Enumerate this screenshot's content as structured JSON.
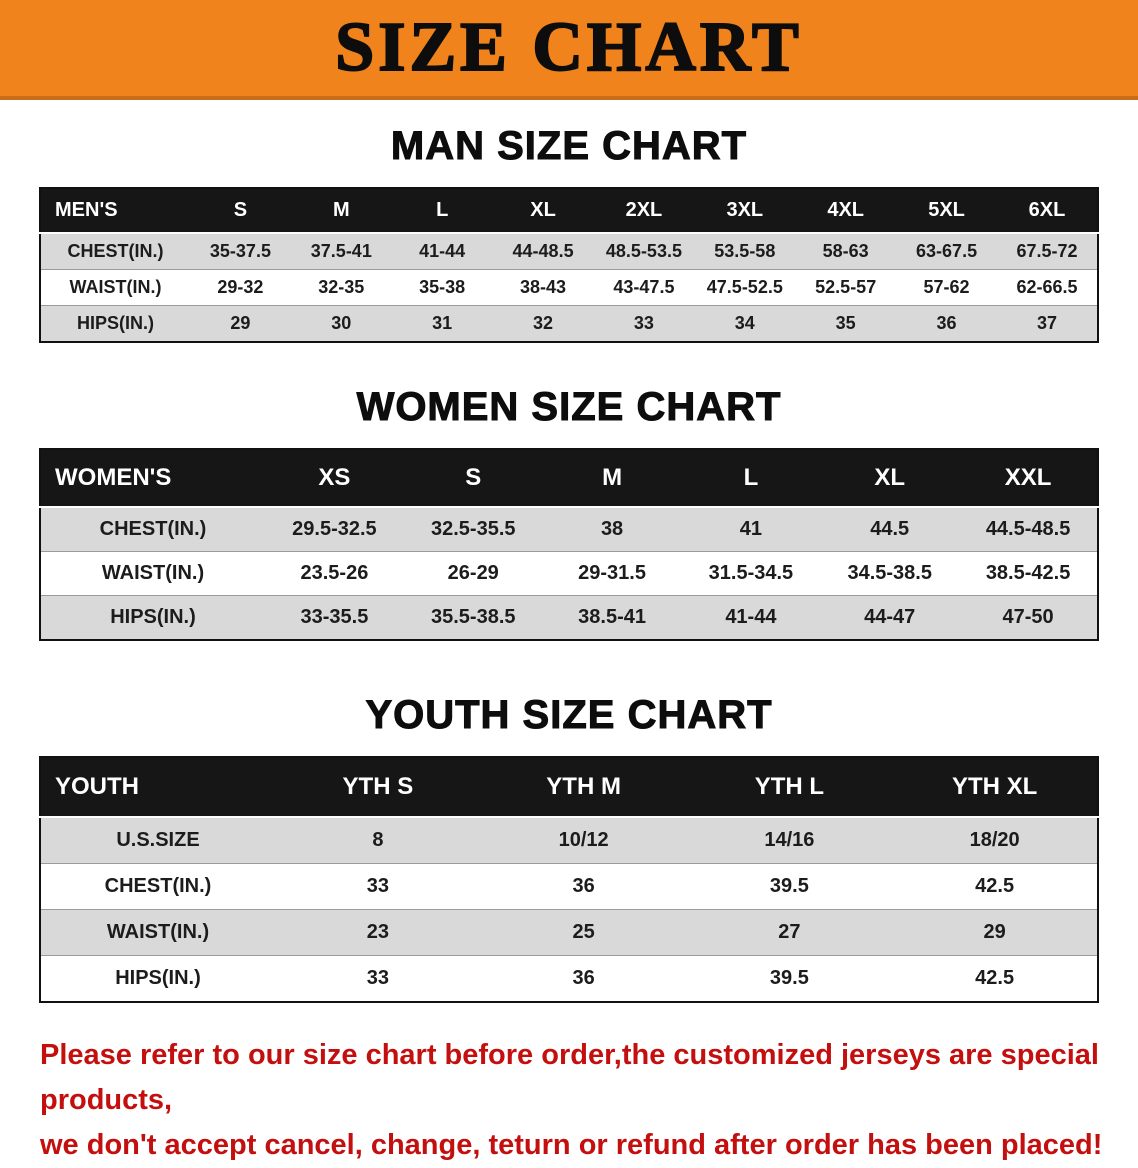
{
  "banner": {
    "title": "SIZE CHART",
    "bg_color": "#f1831d"
  },
  "sections": [
    {
      "heading": "MAN SIZE CHART",
      "table": {
        "header": [
          "MEN'S",
          "S",
          "M",
          "L",
          "XL",
          "2XL",
          "3XL",
          "4XL",
          "5XL",
          "6XL"
        ],
        "rows": [
          [
            "CHEST(IN.)",
            "35-37.5",
            "37.5-41",
            "41-44",
            "44-48.5",
            "48.5-53.5",
            "53.5-58",
            "58-63",
            "63-67.5",
            "67.5-72"
          ],
          [
            "WAIST(IN.)",
            "29-32",
            "32-35",
            "35-38",
            "38-43",
            "43-47.5",
            "47.5-52.5",
            "52.5-57",
            "57-62",
            "62-66.5"
          ],
          [
            "HIPS(IN.)",
            "29",
            "30",
            "31",
            "32",
            "33",
            "34",
            "35",
            "36",
            "37"
          ]
        ]
      }
    },
    {
      "heading": "WOMEN SIZE CHART",
      "table": {
        "header": [
          "WOMEN'S",
          "XS",
          "S",
          "M",
          "L",
          "XL",
          "XXL"
        ],
        "rows": [
          [
            "CHEST(IN.)",
            "29.5-32.5",
            "32.5-35.5",
            "38",
            "41",
            "44.5",
            "44.5-48.5"
          ],
          [
            "WAIST(IN.)",
            "23.5-26",
            "26-29",
            "29-31.5",
            "31.5-34.5",
            "34.5-38.5",
            "38.5-42.5"
          ],
          [
            "HIPS(IN.)",
            "33-35.5",
            "35.5-38.5",
            "38.5-41",
            "41-44",
            "44-47",
            "47-50"
          ]
        ]
      }
    },
    {
      "heading": "YOUTH SIZE CHART",
      "table": {
        "header": [
          "YOUTH",
          "YTH S",
          "YTH M",
          "YTH L",
          "YTH XL"
        ],
        "rows": [
          [
            "U.S.SIZE",
            "8",
            "10/12",
            "14/16",
            "18/20"
          ],
          [
            "CHEST(IN.)",
            "33",
            "36",
            "39.5",
            "42.5"
          ],
          [
            "WAIST(IN.)",
            "23",
            "25",
            "27",
            "29"
          ],
          [
            "HIPS(IN.)",
            "33",
            "36",
            "39.5",
            "42.5"
          ]
        ]
      }
    }
  ],
  "disclaimer": {
    "line1": "Please refer to our size chart before order,the customized jerseys are special products,",
    "line2": "we don't accept cancel, change, teturn or refund after order has been placed!",
    "color": "#c40f0f"
  }
}
